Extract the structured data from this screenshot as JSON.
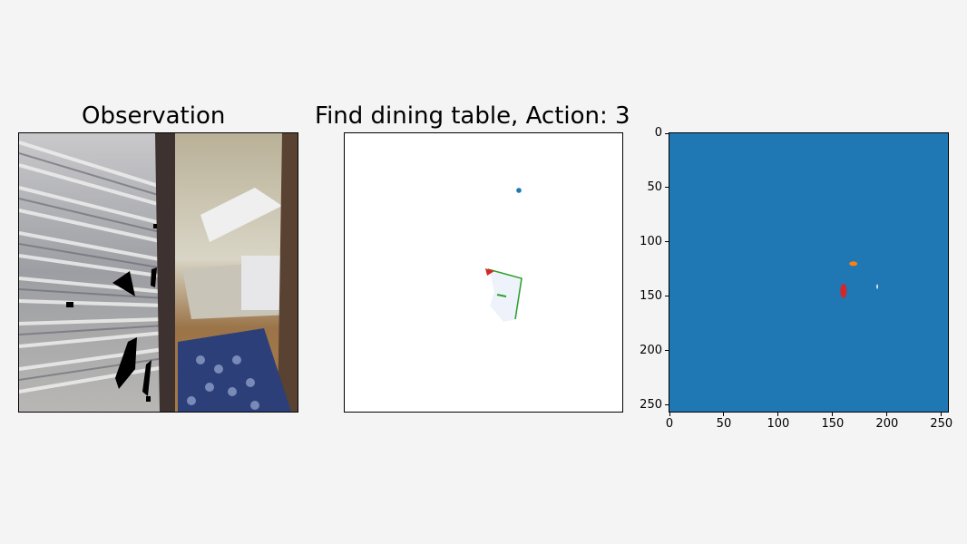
{
  "figure": {
    "panels": [
      {
        "title": "Observation"
      },
      {
        "title": "Find dining table, Action: 3"
      },
      {
        "title": ""
      }
    ]
  },
  "observation": {
    "scene": "rgb-observation-image"
  },
  "semantic_map": {
    "background_color": "#ffffff",
    "agent_marker_color": "#1f77b4",
    "goal_marker_color": "#d62728",
    "explored_color": "#eef2fb",
    "trail_color": "#2ca02c"
  },
  "chart_data": {
    "type": "heatmap",
    "title": "",
    "xlabel": "",
    "ylabel": "",
    "xlim": [
      0,
      256
    ],
    "ylim": [
      256,
      0
    ],
    "xticks": [
      0,
      50,
      100,
      150,
      200,
      250
    ],
    "yticks": [
      0,
      50,
      100,
      150,
      200,
      250
    ],
    "background_color": "#1f77b4",
    "blobs": [
      {
        "color": "#ff7f0e",
        "x": 169,
        "y": 120
      },
      {
        "color": "#d62728",
        "x": 160,
        "y": 145
      },
      {
        "color": "#ffffff",
        "x": 191,
        "y": 141
      }
    ]
  }
}
